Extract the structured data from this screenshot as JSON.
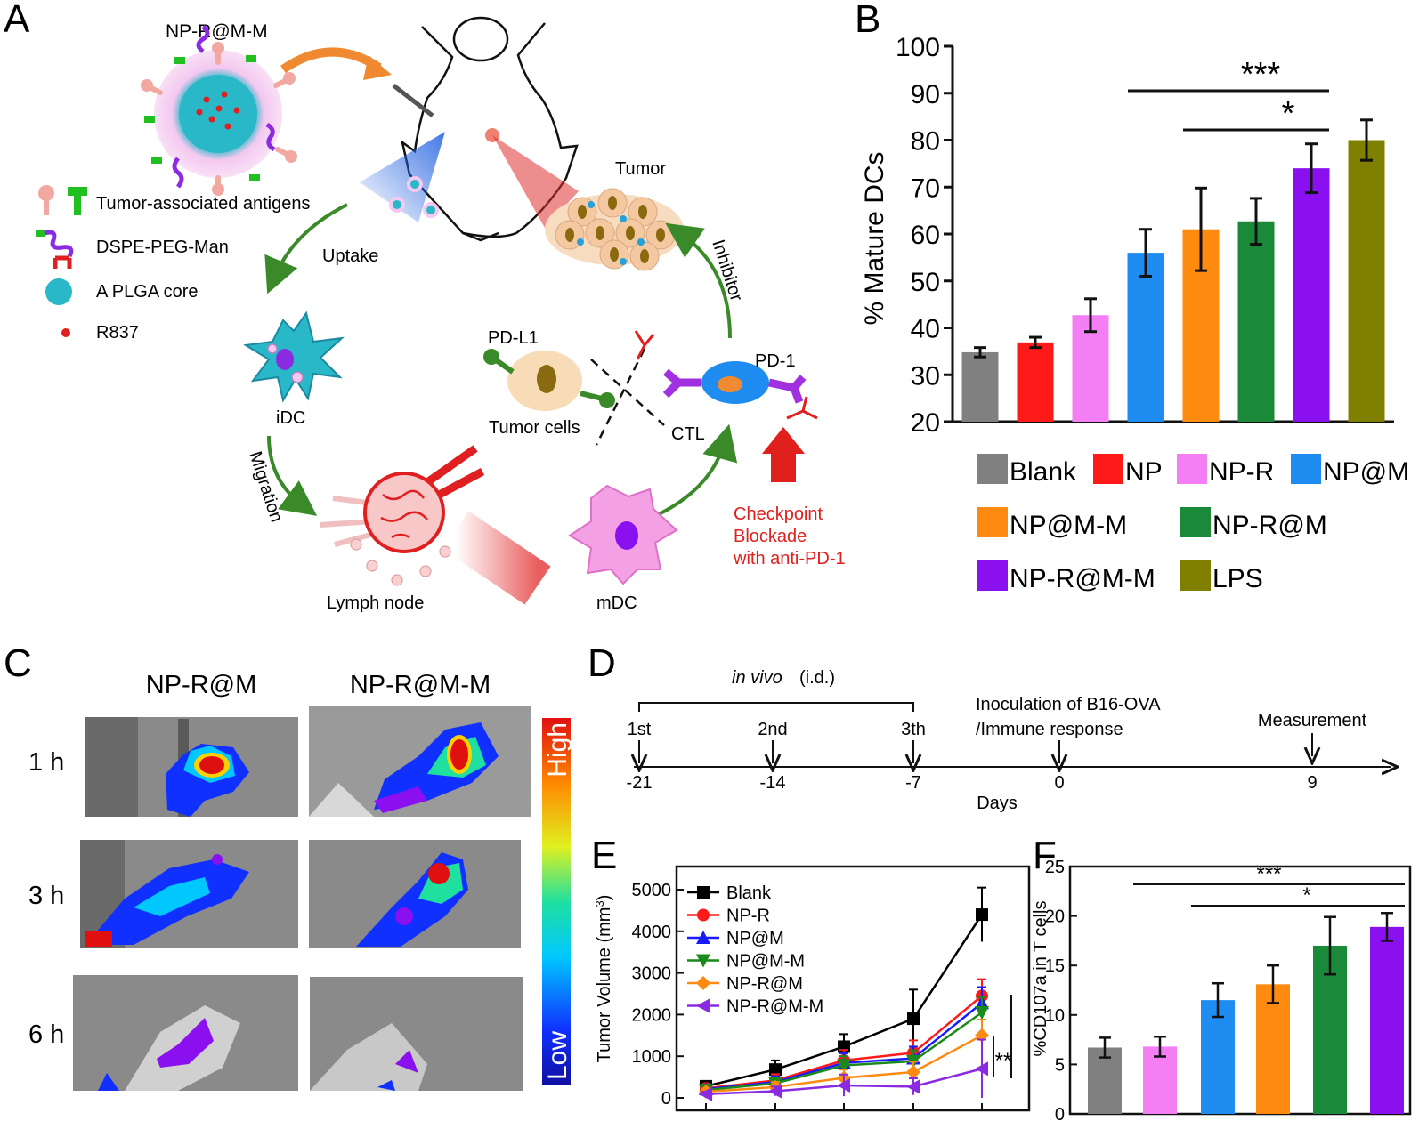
{
  "panels": {
    "A": {
      "label": "A",
      "np_name": "NP-R@M-M",
      "legend": [
        "Tumor-associated antigens",
        "DSPE-PEG-Man",
        "A PLGA core",
        "R837"
      ],
      "uptake": "Uptake",
      "idc": "iDC",
      "migration": "Migration",
      "lymph_node": "Lymph node",
      "mdc": "mDC",
      "tumor": "Tumor",
      "inhibitor": "Inhibitor",
      "pdl1": "PD-L1",
      "pd1": "PD-1",
      "tumor_cells": "Tumor cells",
      "ctl": "CTL",
      "checkpoint": [
        "Checkpoint",
        "Blockade",
        "with anti-PD-1"
      ],
      "colors": {
        "arrow_green": "#3a8a2a",
        "checkpoint_red": "#e0201c",
        "np_teal": "#28b8c8"
      }
    },
    "B": {
      "label": "B"
    },
    "C": {
      "label": "C",
      "columns": [
        "NP-R@M",
        "NP-R@M-M"
      ],
      "rows": [
        "1 h",
        "3 h",
        "6 h"
      ],
      "scale_high": "High",
      "scale_low": "Low"
    },
    "D": {
      "label": "D",
      "in_vivo": "in vivo",
      "in_vivo_suffix": "(i.d.)",
      "doses": [
        "1st",
        "2nd",
        "3th"
      ],
      "inoculation": [
        "Inoculation of B16-OVA",
        "/Immune response"
      ],
      "measurement": "Measurement",
      "ticks": [
        "-21",
        "-14",
        "-7",
        "0",
        "9"
      ],
      "axis_label": "Days"
    },
    "E": {
      "label": "E"
    },
    "F": {
      "label": "F"
    }
  },
  "chart_data": [
    {
      "panel": "B",
      "type": "bar",
      "ylabel": "% Mature DCs",
      "ylim": [
        20,
        100
      ],
      "yticks": [
        20,
        30,
        40,
        50,
        60,
        70,
        80,
        90,
        100
      ],
      "categories": [
        "Blank",
        "NP",
        "NP-R",
        "NP@M",
        "NP@M-M",
        "NP-R@M",
        "NP-R@M-M",
        "LPS"
      ],
      "values": [
        34.8,
        36.9,
        42.7,
        56.0,
        61.0,
        62.7,
        74.0,
        80.0
      ],
      "errors": [
        1.0,
        1.1,
        3.5,
        5.0,
        8.8,
        4.9,
        5.2,
        4.3
      ],
      "colors": [
        "#808080",
        "#ff1a1a",
        "#f47ef4",
        "#1e8cf0",
        "#ff8a10",
        "#1a8a3a",
        "#8a10f0",
        "#808000"
      ],
      "significance": [
        {
          "from": "NP@M",
          "to": "NP-R@M-M",
          "label": "***"
        },
        {
          "from": "NP@M-M",
          "to": "NP-R@M-M",
          "label": "*"
        }
      ],
      "legend_placement": "bottom"
    },
    {
      "panel": "E",
      "type": "line",
      "ylabel": "Tumor Volume (mm",
      "ylabel_sup": "3",
      "ylabel_close": ")",
      "ylim": [
        0,
        5000
      ],
      "yticks": [
        0,
        1000,
        2000,
        3000,
        4000,
        5000
      ],
      "x": [
        1,
        2,
        3,
        4,
        5
      ],
      "series": [
        {
          "name": "Blank",
          "color": "#000000",
          "marker": "square",
          "values": [
            280,
            680,
            1230,
            1900,
            4400
          ],
          "errors": [
            120,
            220,
            300,
            700,
            650
          ]
        },
        {
          "name": "NP-R",
          "color": "#ff1a1a",
          "marker": "circle",
          "values": [
            230,
            420,
            900,
            1080,
            2450
          ],
          "errors": [
            90,
            150,
            250,
            300,
            400
          ]
        },
        {
          "name": "NP@M",
          "color": "#1a1aff",
          "marker": "triangle-up",
          "values": [
            210,
            380,
            840,
            950,
            2280
          ],
          "errors": [
            80,
            140,
            230,
            280,
            380
          ]
        },
        {
          "name": "NP@M-M",
          "color": "#1a8a1a",
          "marker": "triangle-down",
          "values": [
            190,
            350,
            780,
            880,
            2050
          ],
          "errors": [
            80,
            130,
            220,
            260,
            360
          ]
        },
        {
          "name": "NP-R@M",
          "color": "#ff8a10",
          "marker": "diamond",
          "values": [
            150,
            260,
            480,
            620,
            1500
          ],
          "errors": [
            70,
            120,
            200,
            250,
            380
          ]
        },
        {
          "name": "NP-R@M-M",
          "color": "#8a2be2",
          "marker": "triangle-left",
          "values": [
            90,
            160,
            300,
            270,
            700
          ],
          "errors": [
            60,
            110,
            260,
            200,
            700
          ]
        }
      ],
      "significance_label": "**",
      "legend_placement": "top-left"
    },
    {
      "panel": "F",
      "type": "bar",
      "ylabel": "%CD107a in T cells",
      "ylim": [
        0,
        25
      ],
      "yticks": [
        0,
        5,
        10,
        15,
        20,
        25
      ],
      "values": [
        6.7,
        6.8,
        11.5,
        13.1,
        17.0,
        18.9
      ],
      "errors": [
        1.0,
        1.0,
        1.7,
        1.9,
        2.9,
        1.4
      ],
      "colors": [
        "#808080",
        "#f47ef4",
        "#1e8cf0",
        "#ff8a10",
        "#1a8a3a",
        "#8a10f0"
      ],
      "significance": [
        {
          "from": 1,
          "to": 5,
          "label": "***"
        },
        {
          "from": 2,
          "to": 5,
          "label": "*"
        }
      ]
    }
  ]
}
